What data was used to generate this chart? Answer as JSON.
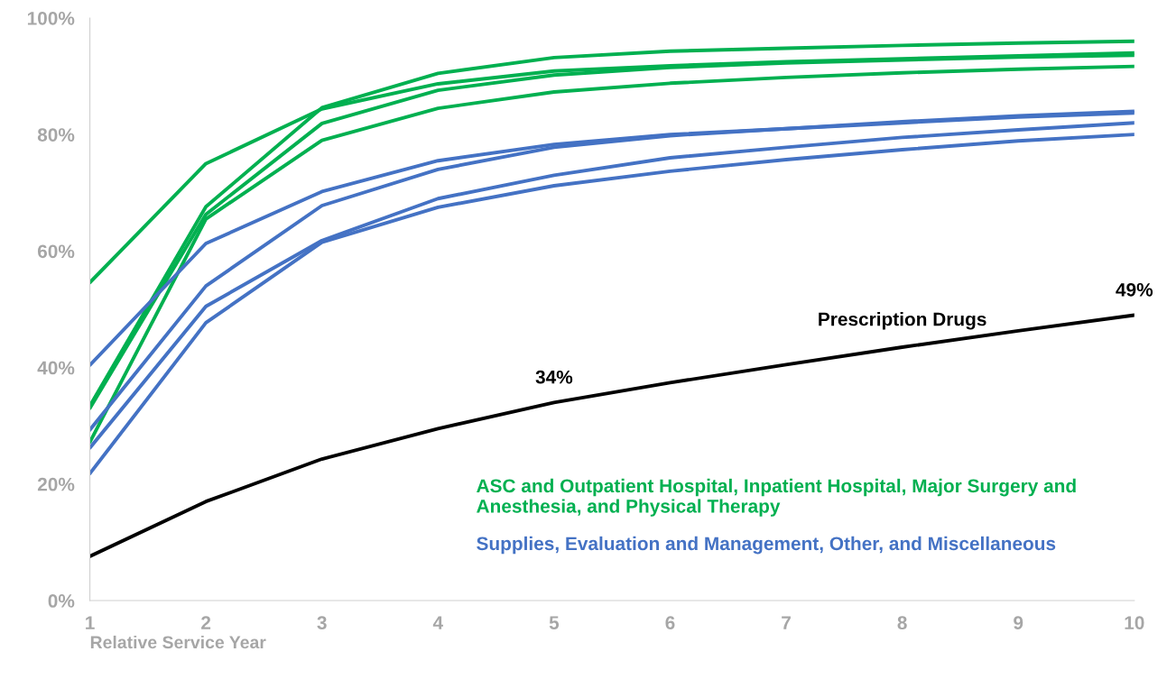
{
  "chart_data": {
    "type": "line",
    "xlabel": "Relative Service Year",
    "x": [
      1,
      2,
      3,
      4,
      5,
      6,
      7,
      8,
      9,
      10
    ],
    "xlim": [
      1,
      10
    ],
    "xticks": [
      1,
      2,
      3,
      4,
      5,
      6,
      7,
      8,
      9,
      10
    ],
    "ylim": [
      0,
      100
    ],
    "yticks": [
      {
        "value": 0,
        "label": "0%"
      },
      {
        "value": 20,
        "label": "20%"
      },
      {
        "value": 40,
        "label": "40%"
      },
      {
        "value": 60,
        "label": "60%"
      },
      {
        "value": 80,
        "label": "80%"
      },
      {
        "value": 100,
        "label": "100%"
      }
    ],
    "grid": false,
    "legend": false,
    "marker": "none",
    "line_style": "solid",
    "series": [
      {
        "name": "ASC and Outpatient Hospital, Inpatient Hospital, Major Surgery and Anesthesia, and Physical Therapy",
        "color": "#00b050",
        "values": [
          33.4,
          67.6,
          84.6,
          90.5,
          93.2,
          94.3,
          94.8,
          95.3,
          95.7,
          96.0
        ]
      },
      {
        "color": "#00b050",
        "values": [
          54.6,
          75.0,
          84.4,
          88.7,
          90.9,
          91.8,
          92.5,
          93.0,
          93.5,
          94.0
        ]
      },
      {
        "color": "#00b050",
        "values": [
          33.0,
          66.3,
          81.9,
          87.6,
          90.2,
          91.5,
          92.3,
          92.8,
          93.3,
          93.6
        ]
      },
      {
        "color": "#00b050",
        "values": [
          27.2,
          65.5,
          79.0,
          84.5,
          87.3,
          88.8,
          89.8,
          90.6,
          91.2,
          91.7
        ]
      },
      {
        "name": "Supplies, Evaluation and Management, Other, and Miscellaneous",
        "color": "#4472c4",
        "values": [
          40.4,
          61.3,
          70.2,
          75.5,
          78.3,
          80.0,
          81.0,
          82.2,
          83.2,
          84.0
        ]
      },
      {
        "color": "#4472c4",
        "values": [
          29.3,
          54.0,
          67.8,
          74.0,
          77.8,
          79.8,
          81.0,
          82.0,
          83.0,
          83.7
        ]
      },
      {
        "color": "#4472c4",
        "values": [
          26.2,
          50.5,
          61.8,
          69.0,
          73.0,
          76.0,
          77.8,
          79.5,
          80.8,
          82.0
        ]
      },
      {
        "color": "#4472c4",
        "values": [
          21.8,
          47.7,
          61.5,
          67.5,
          71.2,
          73.7,
          75.7,
          77.4,
          78.9,
          80.0
        ]
      },
      {
        "name": "Prescription Drugs",
        "color": "#000000",
        "values": [
          7.6,
          17.0,
          24.3,
          29.5,
          34.0,
          37.4,
          40.5,
          43.5,
          46.3,
          49.0
        ],
        "value_labels": [
          null,
          null,
          null,
          null,
          "34%",
          null,
          null,
          null,
          null,
          "49%"
        ]
      }
    ]
  }
}
